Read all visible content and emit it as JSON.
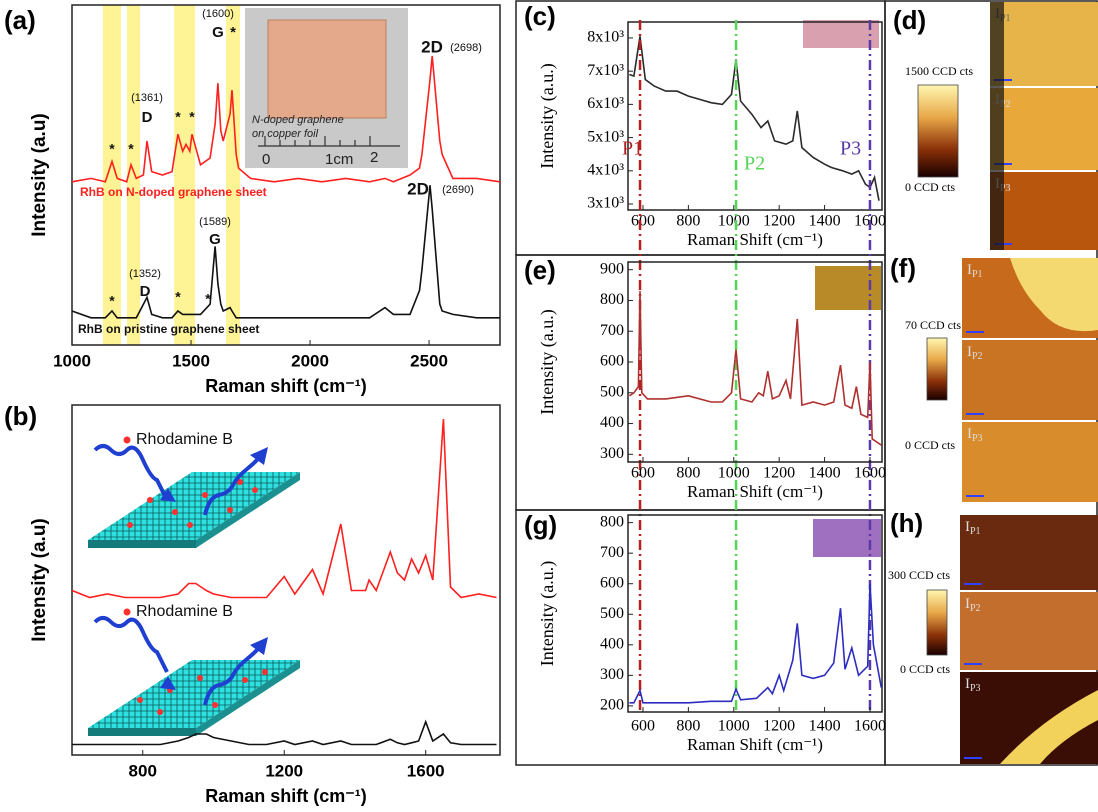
{
  "chart_data": [
    {
      "type": "line",
      "panel": "(a)",
      "x_label": "Raman shift (cm⁻¹)",
      "y_label": "Intensity (a.u)",
      "xlim": [
        1000,
        2798
      ],
      "xticks": [
        1000,
        1500,
        2000,
        2500
      ],
      "ylim": [
        0,
        100
      ],
      "bands": [
        [
          1130,
          1206
        ],
        [
          1231,
          1286
        ],
        [
          1429,
          1517
        ],
        [
          1647,
          1706
        ]
      ],
      "band_color": "#fff17a",
      "x": [
        1000,
        1080,
        1140,
        1168,
        1190,
        1230,
        1248,
        1270,
        1300,
        1315,
        1335,
        1380,
        1420,
        1445,
        1465,
        1479,
        1495,
        1504,
        1540,
        1580,
        1601,
        1613,
        1625,
        1635,
        1664,
        1672,
        1690,
        1700,
        1750,
        1850,
        1950,
        2050,
        2150,
        2250,
        2315,
        2350,
        2420,
        2460,
        2470,
        2504,
        2513,
        2545,
        2555,
        2600,
        2700,
        2798
      ],
      "series": [
        {
          "color": "#ff2020",
          "values": [
            48,
            49,
            48,
            54,
            49,
            48,
            53,
            49,
            50,
            60,
            51,
            50,
            51,
            62,
            57,
            59,
            57,
            62,
            53,
            55,
            65,
            77,
            63,
            60,
            68,
            75,
            56,
            52,
            49,
            48,
            49,
            48,
            49,
            48,
            49,
            48,
            50,
            52,
            56,
            78,
            85,
            60,
            56,
            49,
            49,
            48
          ]
        },
        {
          "color": "#111111",
          "values": [
            10,
            8,
            8,
            10,
            8,
            8,
            8,
            8,
            12,
            14,
            9,
            8,
            8,
            10,
            9,
            9,
            9,
            9,
            9,
            12,
            29,
            18,
            12,
            10,
            11,
            10,
            8,
            8,
            8,
            8,
            8,
            8,
            8,
            8,
            11,
            9,
            9,
            16,
            22,
            47,
            40,
            12,
            10,
            9,
            8,
            8
          ]
        }
      ],
      "annotations": [
        "2D",
        "(2698)",
        "(1600)",
        "G",
        "*",
        "(1361)",
        "D",
        "*",
        "*",
        "*",
        "*",
        "RhB on N-doped graphene sheet",
        "2D",
        "(2690)",
        "(1589)",
        "G",
        "(1352)",
        "D",
        "*",
        "*",
        "*",
        "RhB on pristine graphene sheet"
      ],
      "inset_texts": [
        "N-doped graphene",
        "on copper foil",
        "0",
        "1cm",
        "2"
      ]
    },
    {
      "type": "line",
      "panel": "(b)",
      "x_label": "Raman shift (cm⁻¹)",
      "y_label": "Intensity (a.u)",
      "xlim": [
        600,
        1810
      ],
      "xticks": [
        800,
        1200,
        1600
      ],
      "ylim": [
        0,
        100
      ],
      "x": [
        600,
        650,
        700,
        750,
        800,
        850,
        900,
        930,
        950,
        980,
        1000,
        1050,
        1100,
        1150,
        1200,
        1230,
        1280,
        1310,
        1360,
        1390,
        1430,
        1440,
        1460,
        1500,
        1520,
        1540,
        1560,
        1580,
        1600,
        1620,
        1650,
        1670,
        1700,
        1750,
        1800
      ],
      "series": [
        {
          "color": "#ff2020",
          "values": [
            47,
            45,
            46,
            45,
            45,
            45,
            46,
            49,
            49,
            47,
            46,
            45,
            45,
            45,
            51,
            46,
            53,
            46,
            66,
            47,
            47,
            50,
            47,
            58,
            52,
            50,
            56,
            52,
            57,
            50,
            96,
            48,
            45,
            46,
            45
          ]
        },
        {
          "color": "#111111",
          "values": [
            3,
            3,
            3,
            3,
            3,
            3,
            4,
            5,
            6,
            6,
            5,
            4,
            3,
            3,
            4,
            3,
            4,
            3,
            4,
            3,
            3,
            3,
            3,
            4.5,
            3.5,
            3,
            3.5,
            4,
            9.5,
            4,
            6,
            3.5,
            3,
            3,
            3
          ]
        }
      ],
      "annotations": [
        "Rhodamine B",
        "Rhodamine B"
      ]
    },
    {
      "type": "line",
      "panel": "(c)",
      "x_label": "Raman Shift (cm⁻¹)",
      "y_label": "Intensity (a.u.)",
      "xlim": [
        534,
        1653
      ],
      "xticks": [
        600,
        800,
        1000,
        1200,
        1400,
        1600
      ],
      "ylim": [
        2820,
        8480
      ],
      "yticks": [
        {
          "value": 3000,
          "label": "3x10³"
        },
        {
          "value": 4000,
          "label": "4x10³"
        },
        {
          "value": 5000,
          "label": "5x10³"
        },
        {
          "value": 6000,
          "label": "6x10³"
        },
        {
          "value": 7000,
          "label": "7x10³"
        },
        {
          "value": 8000,
          "label": "8x10³"
        }
      ],
      "x": [
        540,
        560,
        587,
        610,
        650,
        700,
        750,
        800,
        850,
        900,
        950,
        990,
        1010,
        1030,
        1080,
        1120,
        1150,
        1180,
        1230,
        1260,
        1280,
        1300,
        1350,
        1400,
        1430,
        1480,
        1520,
        1550,
        1580,
        1600,
        1620,
        1640
      ],
      "series": [
        {
          "color": "#2a2a2a",
          "values": [
            6900,
            6850,
            8050,
            6750,
            6550,
            6400,
            6400,
            6250,
            6150,
            6050,
            6000,
            6300,
            7350,
            6100,
            5700,
            5300,
            5500,
            4900,
            4800,
            4900,
            5800,
            4700,
            4400,
            4200,
            4100,
            4000,
            3900,
            4000,
            3600,
            3500,
            3800,
            3100
          ]
        }
      ],
      "markers": [
        {
          "label": "P1",
          "x": 587,
          "color": "#b22222"
        },
        {
          "label": "P2",
          "x": 1010,
          "color": "#55d455"
        },
        {
          "label": "P3",
          "x": 1600,
          "color": "#5a3aa8"
        }
      ]
    },
    {
      "type": "line",
      "panel": "(e)",
      "x_label": "Raman Shift (cm⁻¹)",
      "y_label": "Intensity (a.u.)",
      "xlim": [
        534,
        1653
      ],
      "xticks": [
        600,
        800,
        1000,
        1200,
        1400,
        1600
      ],
      "ylim": [
        275,
        925
      ],
      "yticks": [
        300,
        400,
        500,
        600,
        700,
        800,
        900
      ],
      "x": [
        540,
        560,
        580,
        587,
        595,
        620,
        700,
        800,
        900,
        950,
        990,
        1010,
        1030,
        1080,
        1110,
        1130,
        1150,
        1170,
        1200,
        1230,
        1250,
        1280,
        1300,
        1350,
        1400,
        1440,
        1470,
        1490,
        1520,
        1540,
        1560,
        1590,
        1600,
        1610,
        1650
      ],
      "series": [
        {
          "color": "#b0302f",
          "values": [
            490,
            500,
            520,
            830,
            500,
            480,
            480,
            490,
            470,
            470,
            500,
            640,
            480,
            470,
            500,
            490,
            570,
            480,
            490,
            540,
            480,
            740,
            460,
            470,
            460,
            470,
            590,
            460,
            450,
            520,
            430,
            420,
            600,
            350,
            330
          ]
        }
      ]
    },
    {
      "type": "line",
      "panel": "(g)",
      "x_label": "Raman Shift (cm⁻¹)",
      "y_label": "Intensity (a.u.)",
      "xlim": [
        534,
        1653
      ],
      "xticks": [
        600,
        800,
        1000,
        1200,
        1400,
        1600
      ],
      "ylim": [
        180,
        825
      ],
      "yticks": [
        200,
        300,
        400,
        500,
        600,
        700,
        800
      ],
      "x": [
        540,
        560,
        587,
        600,
        700,
        800,
        900,
        990,
        1010,
        1030,
        1100,
        1150,
        1170,
        1200,
        1220,
        1260,
        1280,
        1300,
        1350,
        1400,
        1440,
        1470,
        1490,
        1520,
        1550,
        1590,
        1600,
        1615,
        1650
      ],
      "series": [
        {
          "color": "#2d2dc0",
          "values": [
            210,
            210,
            250,
            210,
            210,
            210,
            215,
            215,
            255,
            220,
            225,
            260,
            240,
            300,
            250,
            350,
            470,
            300,
            290,
            300,
            340,
            520,
            320,
            390,
            300,
            330,
            600,
            400,
            260
          ]
        }
      ]
    }
  ],
  "maps": [
    {
      "panel": "(d)",
      "max_label": "1500 CCD cts",
      "min_label": "0 CCD cts",
      "symbol": "I",
      "subscripts": [
        "P1",
        "P2",
        "P3"
      ]
    },
    {
      "panel": "(f)",
      "max_label": "70 CCD cts",
      "min_label": "0 CCD cts",
      "symbol": "I",
      "subscripts": [
        "P1",
        "P2",
        "P3"
      ]
    },
    {
      "panel": "(h)",
      "max_label": "300 CCD cts",
      "min_label": "0 CCD cts",
      "symbol": "I",
      "subscripts": [
        "P1",
        "P2",
        "P3"
      ]
    }
  ]
}
